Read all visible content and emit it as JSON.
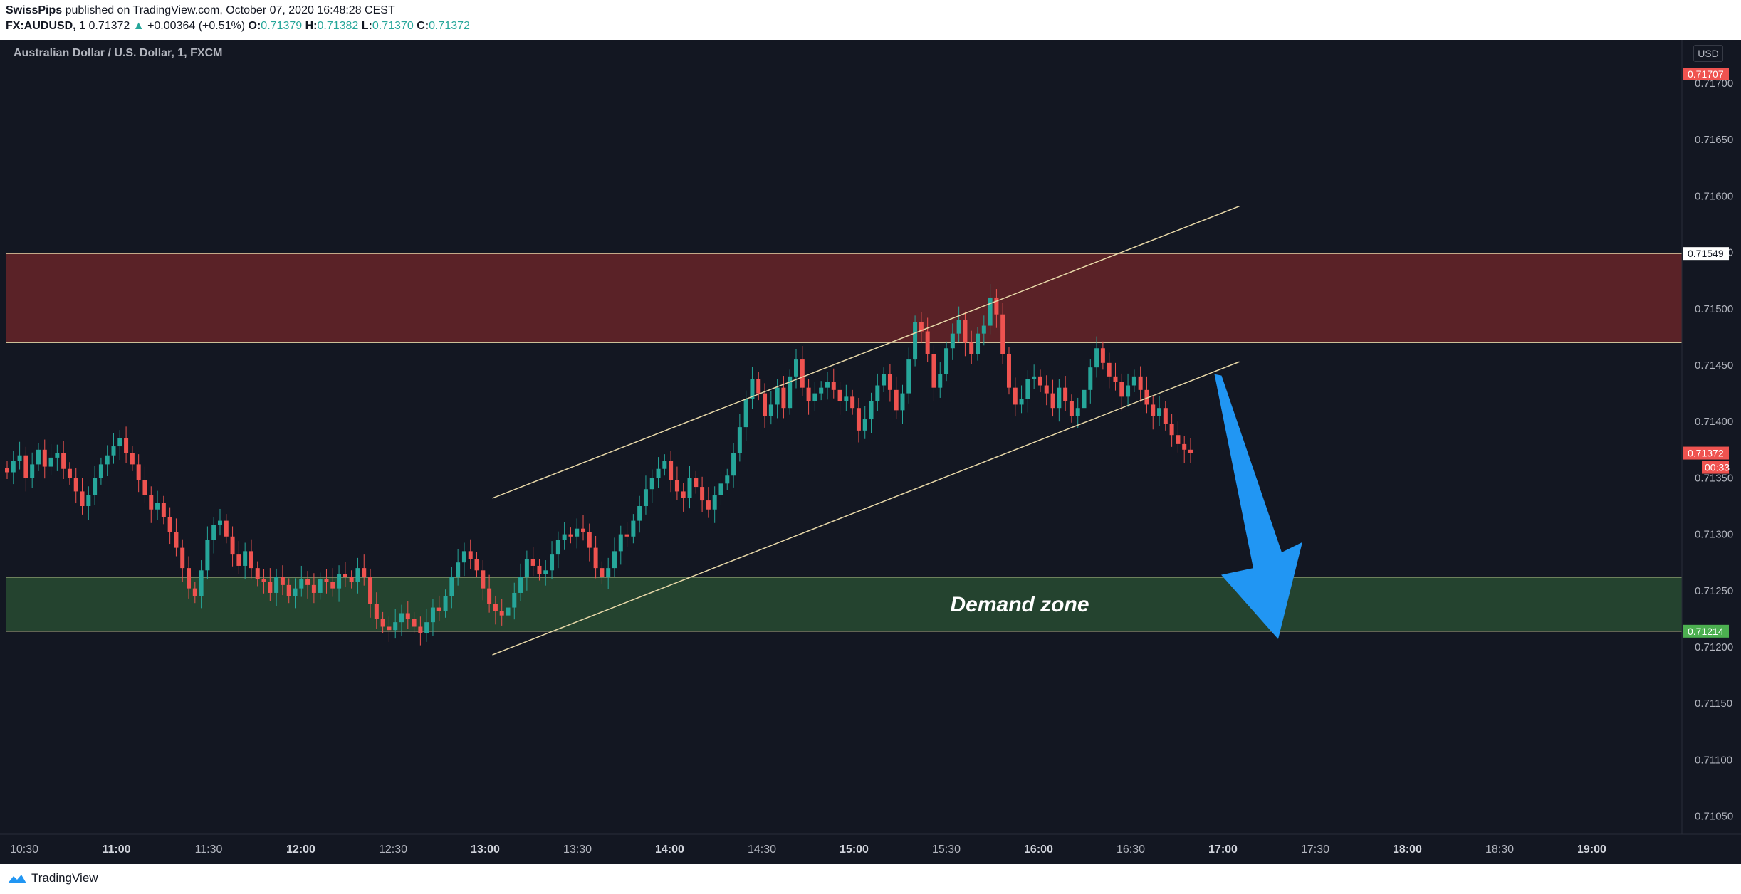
{
  "header": {
    "author": "SwissPips",
    "published": "published on TradingView.com, October 07, 2020 16:48:28 CEST",
    "symbol": "FX:AUDUSD, 1",
    "last": "0.71372",
    "change_arrow": "▲",
    "change": "+0.00364 (+0.51%)",
    "open_label": "O:",
    "open": "0.71379",
    "high_label": "H:",
    "high": "0.71382",
    "low_label": "L:",
    "low": "0.71370",
    "close_label": "C:",
    "close": "0.71372"
  },
  "chart": {
    "legend": "Australian Dollar / U.S. Dollar, 1, FXCM",
    "currency": "USD",
    "price_ticks": [
      "0.71700",
      "0.71650",
      "0.71600",
      "0.71550",
      "0.71500",
      "0.71450",
      "0.71400",
      "0.71350",
      "0.71300",
      "0.71250",
      "0.71200",
      "0.71150",
      "0.71100",
      "0.71050"
    ],
    "price_ticks_values": [
      0.717,
      0.7165,
      0.716,
      0.7155,
      0.715,
      0.7145,
      0.714,
      0.7135,
      0.713,
      0.7125,
      0.712,
      0.7115,
      0.711,
      0.7105
    ],
    "time_ticks": [
      {
        "label": "10:30",
        "bold": false
      },
      {
        "label": "11:00",
        "bold": true
      },
      {
        "label": "11:30",
        "bold": false
      },
      {
        "label": "12:00",
        "bold": true
      },
      {
        "label": "12:30",
        "bold": false
      },
      {
        "label": "13:00",
        "bold": true
      },
      {
        "label": "13:30",
        "bold": false
      },
      {
        "label": "14:00",
        "bold": true
      },
      {
        "label": "14:30",
        "bold": false
      },
      {
        "label": "15:00",
        "bold": true
      },
      {
        "label": "15:30",
        "bold": false
      },
      {
        "label": "16:00",
        "bold": true
      },
      {
        "label": "16:30",
        "bold": false
      },
      {
        "label": "17:00",
        "bold": true
      },
      {
        "label": "17:30",
        "bold": false
      },
      {
        "label": "18:00",
        "bold": true
      },
      {
        "label": "18:30",
        "bold": false
      },
      {
        "label": "19:00",
        "bold": true
      }
    ],
    "price_labels": {
      "top": {
        "text": "0.71707",
        "value": 0.71707,
        "color": "#ef5350"
      },
      "supply_top": {
        "text": "0.71549",
        "value": 0.71549,
        "color": "#ffffff"
      },
      "current": {
        "text": "0.71372",
        "value": 0.71372,
        "color": "#ef5350"
      },
      "countdown": {
        "text": "00:33",
        "color": "#ef5350"
      },
      "demand_bottom": {
        "text": "0.71214",
        "value": 0.71214,
        "color": "#4caf50"
      }
    },
    "supply_zone": {
      "top": 0.71549,
      "bottom": 0.7147,
      "color": "#5a2227"
    },
    "demand_zone": {
      "top": 0.71262,
      "bottom": 0.71214,
      "color": "#24432f",
      "label": "Demand zone"
    },
    "channel": {
      "upper": {
        "t1": "13:00",
        "p1": 0.71332,
        "t2": "17:00",
        "p2": 0.71591
      },
      "lower": {
        "t1": "13:00",
        "p1": 0.71193,
        "t2": "17:00",
        "p2": 0.71453
      }
    },
    "arrow": {
      "from_time": "17:00",
      "from_price": 0.71442,
      "to_time": "17:15",
      "to_price": 0.71207,
      "color": "#2196f3"
    },
    "colors": {
      "up": "#26a69a",
      "down": "#ef5350",
      "background": "#131722",
      "grid_text": "#b2b5be"
    },
    "candles_closes": [
      0.71355,
      0.71365,
      0.7137,
      0.7135,
      0.71362,
      0.71375,
      0.7136,
      0.71368,
      0.71372,
      0.71358,
      0.7135,
      0.71338,
      0.71325,
      0.71335,
      0.7135,
      0.71362,
      0.7137,
      0.71378,
      0.71385,
      0.71372,
      0.71362,
      0.71348,
      0.71335,
      0.71322,
      0.71328,
      0.71315,
      0.71302,
      0.71288,
      0.7127,
      0.71252,
      0.71245,
      0.71268,
      0.71295,
      0.71308,
      0.71312,
      0.71298,
      0.71282,
      0.71272,
      0.71285,
      0.7127,
      0.7126,
      0.71258,
      0.71248,
      0.71262,
      0.71255,
      0.71245,
      0.71252,
      0.7126,
      0.71255,
      0.71248,
      0.7126,
      0.71258,
      0.71252,
      0.71265,
      0.71262,
      0.71258,
      0.7127,
      0.71262,
      0.71238,
      0.71225,
      0.71218,
      0.71215,
      0.71222,
      0.7123,
      0.71225,
      0.71218,
      0.71212,
      0.71222,
      0.71235,
      0.71232,
      0.71245,
      0.71262,
      0.71275,
      0.71285,
      0.71278,
      0.71268,
      0.71252,
      0.71238,
      0.71232,
      0.71228,
      0.71235,
      0.71248,
      0.71262,
      0.71278,
      0.71272,
      0.71265,
      0.71268,
      0.71282,
      0.71295,
      0.713,
      0.71298,
      0.71305,
      0.71302,
      0.71288,
      0.7127,
      0.71262,
      0.7127,
      0.71285,
      0.713,
      0.71298,
      0.71312,
      0.71325,
      0.7134,
      0.7135,
      0.71358,
      0.71365,
      0.71348,
      0.71338,
      0.71332,
      0.7135,
      0.71342,
      0.7133,
      0.71322,
      0.71335,
      0.71345,
      0.71352,
      0.71372,
      0.71395,
      0.7142,
      0.71438,
      0.71425,
      0.71405,
      0.71415,
      0.7143,
      0.71412,
      0.7144,
      0.71455,
      0.7143,
      0.71418,
      0.71425,
      0.7143,
      0.71435,
      0.71428,
      0.71418,
      0.71422,
      0.71412,
      0.71392,
      0.71402,
      0.71418,
      0.71432,
      0.71442,
      0.71428,
      0.7141,
      0.71425,
      0.71455,
      0.71488,
      0.7148,
      0.7146,
      0.7143,
      0.71442,
      0.71465,
      0.71478,
      0.7149,
      0.7147,
      0.7146,
      0.71478,
      0.71485,
      0.7151,
      0.71495,
      0.7146,
      0.7143,
      0.71415,
      0.7142,
      0.71438,
      0.7144,
      0.71432,
      0.71425,
      0.71412,
      0.7143,
      0.71418,
      0.71405,
      0.71412,
      0.71428,
      0.71448,
      0.71465,
      0.71452,
      0.7144,
      0.71435,
      0.71422,
      0.71432,
      0.7144,
      0.71428,
      0.71415,
      0.71405,
      0.71412,
      0.71398,
      0.71388,
      0.7138,
      0.71375,
      0.71372
    ]
  }
}
